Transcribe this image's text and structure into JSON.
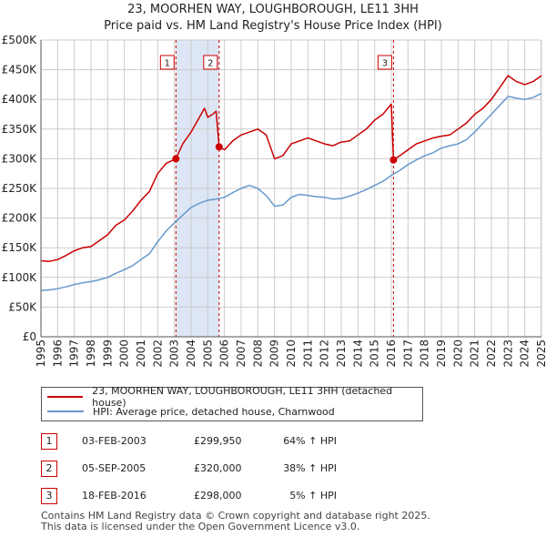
{
  "chart_data": {
    "type": "line",
    "title": "23, MOORHEN WAY, LOUGHBOROUGH, LE11 3HH",
    "subtitle": "Price paid vs. HM Land Registry's House Price Index (HPI)",
    "xlabel": "",
    "ylabel": "",
    "xlim": [
      1995,
      2025
    ],
    "ylim": [
      0,
      500000
    ],
    "y_ticks": [
      0,
      50000,
      100000,
      150000,
      200000,
      250000,
      300000,
      350000,
      400000,
      450000,
      500000
    ],
    "y_tick_labels": [
      "£0",
      "£50K",
      "£100K",
      "£150K",
      "£200K",
      "£250K",
      "£300K",
      "£350K",
      "£400K",
      "£450K",
      "£500K"
    ],
    "x_ticks": [
      1995,
      1996,
      1997,
      1998,
      1999,
      2000,
      2001,
      2002,
      2003,
      2004,
      2005,
      2006,
      2007,
      2008,
      2009,
      2010,
      2011,
      2012,
      2013,
      2014,
      2015,
      2016,
      2017,
      2018,
      2019,
      2020,
      2021,
      2022,
      2023,
      2024,
      2025
    ],
    "x_tick_labels": [
      "1995",
      "1996",
      "1997",
      "1998",
      "1999",
      "2000",
      "2001",
      "2002",
      "2003",
      "2004",
      "2005",
      "2006",
      "2007",
      "2008",
      "2009",
      "2010",
      "2011",
      "2012",
      "2013",
      "2014",
      "2015",
      "2016",
      "2017",
      "2018",
      "2019",
      "2020",
      "2021",
      "2022",
      "2023",
      "2024",
      "2025"
    ],
    "grid": true,
    "series": [
      {
        "name": "23, MOORHEN WAY, LOUGHBOROUGH, LE11 3HH (detached house)",
        "color": "#cc0000",
        "x": [
          1995.0,
          1995.5,
          1996.0,
          1996.5,
          1997.0,
          1997.5,
          1998.0,
          1998.5,
          1999.0,
          1999.5,
          2000.0,
          2000.5,
          2001.0,
          2001.5,
          2002.0,
          2002.5,
          2003.09,
          2003.5,
          2004.0,
          2004.5,
          2004.8,
          2005.0,
          2005.3,
          2005.5,
          2005.68,
          2006.0,
          2006.5,
          2007.0,
          2007.5,
          2008.0,
          2008.5,
          2009.0,
          2009.5,
          2010.0,
          2010.5,
          2011.0,
          2011.5,
          2012.0,
          2012.5,
          2013.0,
          2013.5,
          2014.0,
          2014.5,
          2015.0,
          2015.5,
          2016.0,
          2016.13,
          2016.5,
          2017.0,
          2017.5,
          2018.0,
          2018.5,
          2019.0,
          2019.5,
          2020.0,
          2020.5,
          2021.0,
          2021.5,
          2022.0,
          2022.5,
          2023.0,
          2023.5,
          2024.0,
          2024.5,
          2025.0
        ],
        "values": [
          128000,
          127000,
          130000,
          137000,
          145000,
          150000,
          152000,
          162000,
          172000,
          188000,
          197000,
          212000,
          230000,
          245000,
          275000,
          292000,
          299950,
          325000,
          345000,
          370000,
          385000,
          370000,
          375000,
          380000,
          320000,
          315000,
          330000,
          340000,
          345000,
          350000,
          340000,
          300000,
          305000,
          325000,
          330000,
          335000,
          330000,
          325000,
          322000,
          328000,
          330000,
          340000,
          350000,
          365000,
          375000,
          392000,
          298000,
          305000,
          315000,
          325000,
          330000,
          335000,
          338000,
          340000,
          350000,
          360000,
          375000,
          385000,
          400000,
          420000,
          440000,
          430000,
          425000,
          430000,
          440000
        ]
      },
      {
        "name": "HPI: Average price, detached house, Charnwood",
        "color": "#6699cc",
        "x": [
          1995.0,
          1995.5,
          1996.0,
          1996.5,
          1997.0,
          1997.5,
          1998.0,
          1998.5,
          1999.0,
          1999.5,
          2000.0,
          2000.5,
          2001.0,
          2001.5,
          2002.0,
          2002.5,
          2003.0,
          2003.5,
          2004.0,
          2004.5,
          2005.0,
          2005.5,
          2006.0,
          2006.5,
          2007.0,
          2007.5,
          2008.0,
          2008.5,
          2009.0,
          2009.5,
          2010.0,
          2010.5,
          2011.0,
          2011.5,
          2012.0,
          2012.5,
          2013.0,
          2013.5,
          2014.0,
          2014.5,
          2015.0,
          2015.5,
          2016.0,
          2016.5,
          2017.0,
          2017.5,
          2018.0,
          2018.5,
          2019.0,
          2019.5,
          2020.0,
          2020.5,
          2021.0,
          2021.5,
          2022.0,
          2022.5,
          2023.0,
          2023.5,
          2024.0,
          2024.5,
          2025.0
        ],
        "values": [
          78000,
          79000,
          81000,
          84000,
          88000,
          91000,
          93000,
          96000,
          100000,
          107000,
          113000,
          120000,
          130000,
          140000,
          160000,
          178000,
          192000,
          205000,
          218000,
          225000,
          230000,
          232000,
          235000,
          243000,
          250000,
          255000,
          250000,
          238000,
          220000,
          222000,
          235000,
          240000,
          238000,
          236000,
          235000,
          232000,
          233000,
          237000,
          242000,
          248000,
          255000,
          262000,
          272000,
          280000,
          290000,
          298000,
          305000,
          310000,
          318000,
          322000,
          325000,
          332000,
          345000,
          360000,
          375000,
          390000,
          405000,
          402000,
          400000,
          403000,
          410000
        ]
      }
    ],
    "annotations": [
      {
        "label": "1",
        "x": 2003.09,
        "y": 299950
      },
      {
        "label": "2",
        "x": 2005.68,
        "y": 320000
      },
      {
        "label": "3",
        "x": 2016.13,
        "y": 298000
      }
    ],
    "shaded_ranges": [
      [
        2003.09,
        2005.68
      ]
    ]
  },
  "legend": {
    "red_label": "23, MOORHEN WAY, LOUGHBOROUGH, LE11 3HH (detached house)",
    "blue_label": "HPI: Average price, detached house, Charnwood",
    "red_color": "#cc0000",
    "blue_color": "#6699cc"
  },
  "sales": [
    {
      "num": "1",
      "date": "03-FEB-2003",
      "price": "£299,950",
      "hpi": "64% ↑ HPI"
    },
    {
      "num": "2",
      "date": "05-SEP-2005",
      "price": "£320,000",
      "hpi": "38% ↑ HPI"
    },
    {
      "num": "3",
      "date": "18-FEB-2016",
      "price": "£298,000",
      "hpi": "5% ↑ HPI"
    }
  ],
  "footer": {
    "line1": "Contains HM Land Registry data © Crown copyright and database right 2025.",
    "line2": "This data is licensed under the Open Government Licence v3.0."
  }
}
